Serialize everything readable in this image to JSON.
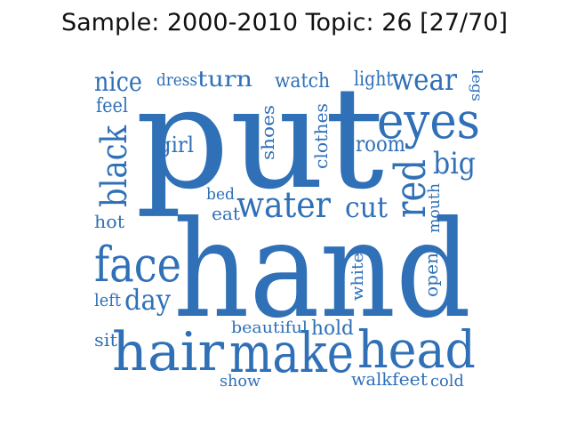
{
  "title": "Sample: 2000-2010 Topic: 26 [27/70]",
  "word_color": "#2f70b7",
  "words": [
    "put",
    "hand",
    "eyes",
    "head",
    "make",
    "hair",
    "face",
    "water",
    "red",
    "black",
    "wear",
    "big",
    "nice",
    "cut",
    "day",
    "turn",
    "watch",
    "light",
    "dress",
    "legs",
    "feel",
    "girl",
    "shoes",
    "clothes",
    "room",
    "bed",
    "eat",
    "hot",
    "mouth",
    "left",
    "open",
    "white",
    "sit",
    "hold",
    "beautiful",
    "show",
    "walk",
    "feet",
    "cold"
  ]
}
